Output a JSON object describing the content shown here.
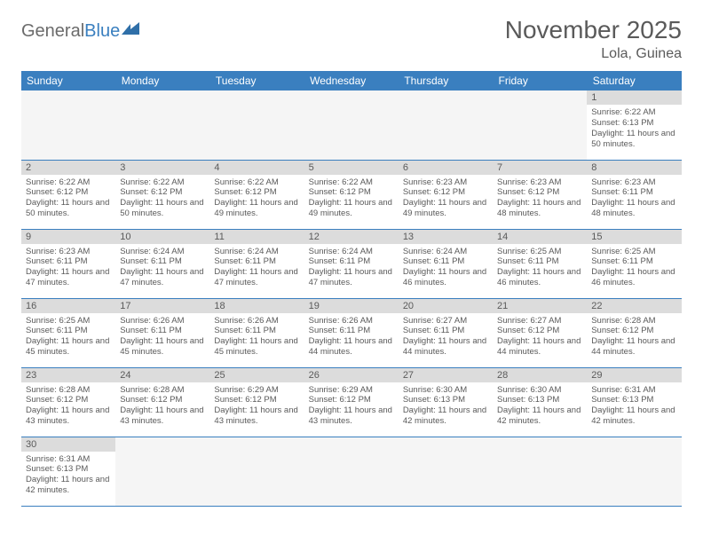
{
  "brand": {
    "text1": "General",
    "text2": "Blue"
  },
  "title": "November 2025",
  "location": "Lola, Guinea",
  "colors": {
    "header_bg": "#3a7fbf",
    "header_text": "#ffffff",
    "daynum_bg": "#dcdcdc",
    "text": "#5a5a5a",
    "border": "#3a7fbf",
    "empty_bg": "#f5f5f5",
    "page_bg": "#ffffff"
  },
  "day_headers": [
    "Sunday",
    "Monday",
    "Tuesday",
    "Wednesday",
    "Thursday",
    "Friday",
    "Saturday"
  ],
  "days": {
    "1": {
      "sunrise": "6:22 AM",
      "sunset": "6:13 PM",
      "daylight": "11 hours and 50 minutes."
    },
    "2": {
      "sunrise": "6:22 AM",
      "sunset": "6:12 PM",
      "daylight": "11 hours and 50 minutes."
    },
    "3": {
      "sunrise": "6:22 AM",
      "sunset": "6:12 PM",
      "daylight": "11 hours and 50 minutes."
    },
    "4": {
      "sunrise": "6:22 AM",
      "sunset": "6:12 PM",
      "daylight": "11 hours and 49 minutes."
    },
    "5": {
      "sunrise": "6:22 AM",
      "sunset": "6:12 PM",
      "daylight": "11 hours and 49 minutes."
    },
    "6": {
      "sunrise": "6:23 AM",
      "sunset": "6:12 PM",
      "daylight": "11 hours and 49 minutes."
    },
    "7": {
      "sunrise": "6:23 AM",
      "sunset": "6:12 PM",
      "daylight": "11 hours and 48 minutes."
    },
    "8": {
      "sunrise": "6:23 AM",
      "sunset": "6:11 PM",
      "daylight": "11 hours and 48 minutes."
    },
    "9": {
      "sunrise": "6:23 AM",
      "sunset": "6:11 PM",
      "daylight": "11 hours and 47 minutes."
    },
    "10": {
      "sunrise": "6:24 AM",
      "sunset": "6:11 PM",
      "daylight": "11 hours and 47 minutes."
    },
    "11": {
      "sunrise": "6:24 AM",
      "sunset": "6:11 PM",
      "daylight": "11 hours and 47 minutes."
    },
    "12": {
      "sunrise": "6:24 AM",
      "sunset": "6:11 PM",
      "daylight": "11 hours and 47 minutes."
    },
    "13": {
      "sunrise": "6:24 AM",
      "sunset": "6:11 PM",
      "daylight": "11 hours and 46 minutes."
    },
    "14": {
      "sunrise": "6:25 AM",
      "sunset": "6:11 PM",
      "daylight": "11 hours and 46 minutes."
    },
    "15": {
      "sunrise": "6:25 AM",
      "sunset": "6:11 PM",
      "daylight": "11 hours and 46 minutes."
    },
    "16": {
      "sunrise": "6:25 AM",
      "sunset": "6:11 PM",
      "daylight": "11 hours and 45 minutes."
    },
    "17": {
      "sunrise": "6:26 AM",
      "sunset": "6:11 PM",
      "daylight": "11 hours and 45 minutes."
    },
    "18": {
      "sunrise": "6:26 AM",
      "sunset": "6:11 PM",
      "daylight": "11 hours and 45 minutes."
    },
    "19": {
      "sunrise": "6:26 AM",
      "sunset": "6:11 PM",
      "daylight": "11 hours and 44 minutes."
    },
    "20": {
      "sunrise": "6:27 AM",
      "sunset": "6:11 PM",
      "daylight": "11 hours and 44 minutes."
    },
    "21": {
      "sunrise": "6:27 AM",
      "sunset": "6:12 PM",
      "daylight": "11 hours and 44 minutes."
    },
    "22": {
      "sunrise": "6:28 AM",
      "sunset": "6:12 PM",
      "daylight": "11 hours and 44 minutes."
    },
    "23": {
      "sunrise": "6:28 AM",
      "sunset": "6:12 PM",
      "daylight": "11 hours and 43 minutes."
    },
    "24": {
      "sunrise": "6:28 AM",
      "sunset": "6:12 PM",
      "daylight": "11 hours and 43 minutes."
    },
    "25": {
      "sunrise": "6:29 AM",
      "sunset": "6:12 PM",
      "daylight": "11 hours and 43 minutes."
    },
    "26": {
      "sunrise": "6:29 AM",
      "sunset": "6:12 PM",
      "daylight": "11 hours and 43 minutes."
    },
    "27": {
      "sunrise": "6:30 AM",
      "sunset": "6:13 PM",
      "daylight": "11 hours and 42 minutes."
    },
    "28": {
      "sunrise": "6:30 AM",
      "sunset": "6:13 PM",
      "daylight": "11 hours and 42 minutes."
    },
    "29": {
      "sunrise": "6:31 AM",
      "sunset": "6:13 PM",
      "daylight": "11 hours and 42 minutes."
    },
    "30": {
      "sunrise": "6:31 AM",
      "sunset": "6:13 PM",
      "daylight": "11 hours and 42 minutes."
    }
  },
  "labels": {
    "sunrise_prefix": "Sunrise: ",
    "sunset_prefix": "Sunset: ",
    "daylight_prefix": "Daylight: "
  },
  "grid": [
    [
      null,
      null,
      null,
      null,
      null,
      null,
      "1"
    ],
    [
      "2",
      "3",
      "4",
      "5",
      "6",
      "7",
      "8"
    ],
    [
      "9",
      "10",
      "11",
      "12",
      "13",
      "14",
      "15"
    ],
    [
      "16",
      "17",
      "18",
      "19",
      "20",
      "21",
      "22"
    ],
    [
      "23",
      "24",
      "25",
      "26",
      "27",
      "28",
      "29"
    ],
    [
      "30",
      null,
      null,
      null,
      null,
      null,
      null
    ]
  ]
}
